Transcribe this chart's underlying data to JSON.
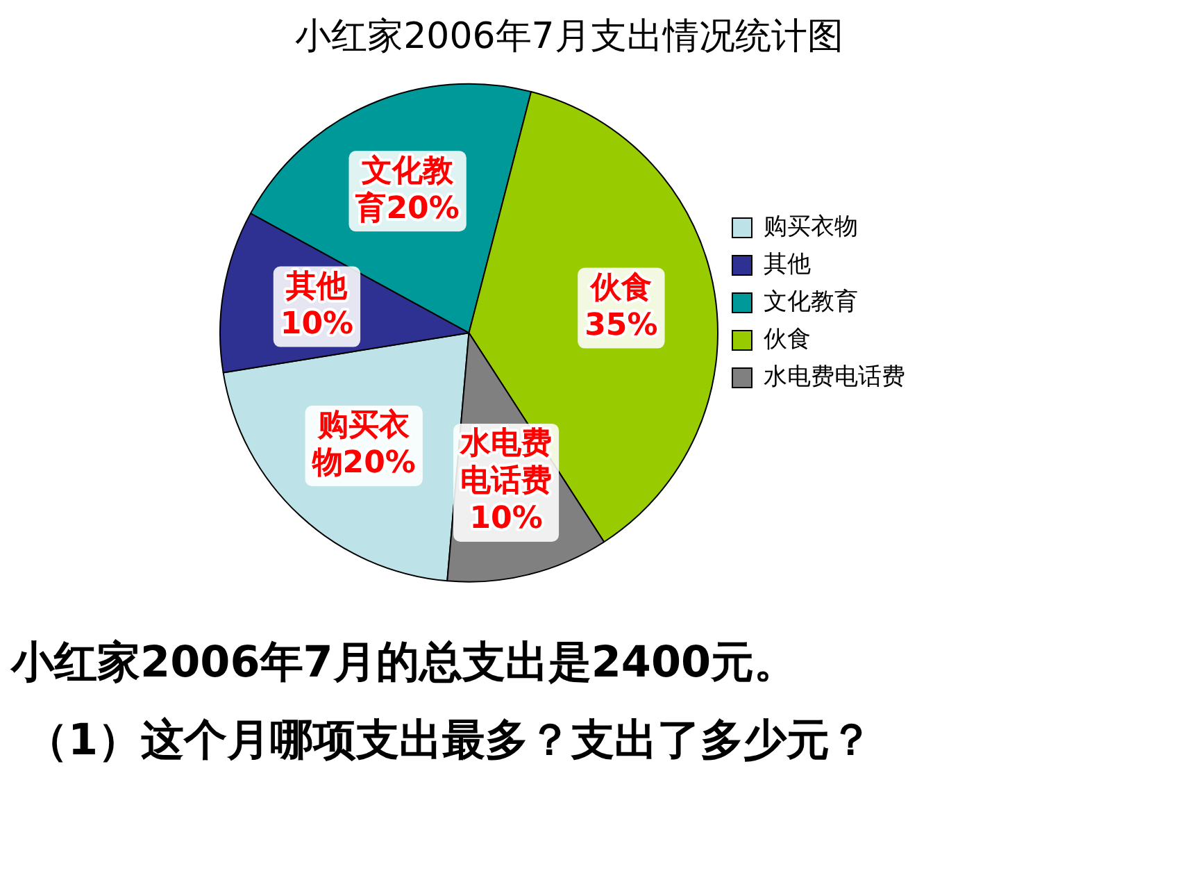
{
  "chart_data": {
    "type": "pie",
    "title": "小红家2006年7月支出情况统计图",
    "categories": [
      "购买衣物",
      "其他",
      "文化教育",
      "伙食",
      "水电费电话费"
    ],
    "values": [
      20,
      10,
      20,
      35,
      10
    ],
    "colors": [
      "#bde3e8",
      "#2e3192",
      "#00999a",
      "#99cc00",
      "#808080"
    ],
    "value_labels": [
      "购买衣物20%",
      "其他10%",
      "文化教育20%",
      "伙食35%",
      "水电费电话费10%"
    ],
    "legend": "right",
    "annotations": [
      "小红家2006年7月的总支出是2400元。",
      "（1）这个月哪项支出最多？支出了多少元？"
    ]
  }
}
